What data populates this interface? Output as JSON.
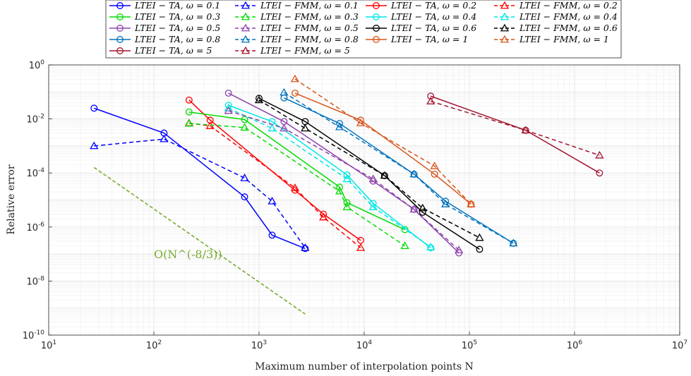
{
  "chart_data": {
    "type": "line",
    "title": "",
    "xlabel": "Maximum number of interpolation points N",
    "ylabel": "Relative error",
    "xscale": "log",
    "yscale": "log",
    "xlim": [
      10,
      10000000
    ],
    "ylim": [
      1e-10,
      1
    ],
    "x_ticks": [
      {
        "base": "10",
        "exp": "1"
      },
      {
        "base": "10",
        "exp": "2"
      },
      {
        "base": "10",
        "exp": "3"
      },
      {
        "base": "10",
        "exp": "4"
      },
      {
        "base": "10",
        "exp": "5"
      },
      {
        "base": "10",
        "exp": "6"
      },
      {
        "base": "10",
        "exp": "7"
      }
    ],
    "y_ticks": [
      {
        "base": "10",
        "exp": "0"
      },
      {
        "base": "10",
        "exp": "-2"
      },
      {
        "base": "10",
        "exp": "-4"
      },
      {
        "base": "10",
        "exp": "-6"
      },
      {
        "base": "10",
        "exp": "-8"
      },
      {
        "base": "10",
        "exp": "-10"
      }
    ],
    "grid": "major and minor",
    "legend_position": "top",
    "series": [
      {
        "name": "LTEI − TA, ω = 0.1",
        "color": "#0000ff",
        "marker": "circle",
        "dash": "solid",
        "x": [
          27,
          125,
          729,
          1331,
          2744
        ],
        "y": [
          0.025,
          0.003,
          1.3e-05,
          5e-07,
          1.6e-07
        ]
      },
      {
        "name": "LTEI − FMM, ω = 0.1",
        "color": "#0000ff",
        "marker": "triangle",
        "dash": "dashed",
        "x": [
          27,
          125,
          729,
          1331,
          2744
        ],
        "y": [
          0.001,
          0.0018,
          6.5e-05,
          9e-06,
          1.7e-07
        ]
      },
      {
        "name": "LTEI − TA, ω = 0.2",
        "color": "#ff0000",
        "marker": "circle",
        "dash": "solid",
        "x": [
          216,
          343,
          2197,
          4096,
          9261
        ],
        "y": [
          0.05,
          0.009,
          2.3e-05,
          3e-06,
          3.2e-07
        ]
      },
      {
        "name": "LTEI − FMM, ω = 0.2",
        "color": "#ff0000",
        "marker": "triangle",
        "dash": "dashed",
        "x": [
          216,
          343,
          2197,
          4096,
          9261
        ],
        "y": [
          0.007,
          0.0055,
          2.8e-05,
          2.3e-06,
          1.7e-07
        ]
      },
      {
        "name": "LTEI − TA, ω = 0.3",
        "color": "#00dd00",
        "marker": "circle",
        "dash": "solid",
        "x": [
          216,
          729,
          5832,
          6859,
          24389
        ],
        "y": [
          0.018,
          0.0095,
          3e-05,
          8e-06,
          8e-07
        ]
      },
      {
        "name": "LTEI − FMM, ω = 0.3",
        "color": "#00dd00",
        "marker": "triangle",
        "dash": "dashed",
        "x": [
          216,
          729,
          5832,
          6859,
          24389
        ],
        "y": [
          0.0068,
          0.0048,
          2.1e-05,
          5.5e-06,
          2e-07
        ]
      },
      {
        "name": "LTEI − TA, ω = 0.4",
        "color": "#00e6e6",
        "marker": "circle",
        "dash": "solid",
        "x": [
          512,
          1331,
          6859,
          12167,
          42875
        ],
        "y": [
          0.032,
          0.008,
          8.5e-05,
          7.5e-06,
          1.7e-07
        ]
      },
      {
        "name": "LTEI − FMM, ω = 0.4",
        "color": "#00e6e6",
        "marker": "triangle",
        "dash": "dashed",
        "x": [
          512,
          1331,
          6859,
          12167,
          42875
        ],
        "y": [
          0.025,
          0.0045,
          6e-05,
          5.5e-06,
          1.8e-07
        ]
      },
      {
        "name": "LTEI − TA, ω = 0.5",
        "color": "#8e44ad",
        "marker": "circle",
        "dash": "solid",
        "x": [
          512,
          1728,
          12167,
          29791,
          79507
        ],
        "y": [
          0.09,
          0.008,
          5e-05,
          4.5e-06,
          1.1e-07
        ]
      },
      {
        "name": "LTEI − FMM, ω = 0.5",
        "color": "#8e44ad",
        "marker": "triangle",
        "dash": "dashed",
        "x": [
          512,
          1728,
          12167,
          29791,
          79507
        ],
        "y": [
          0.02,
          0.0045,
          6e-05,
          4.5e-06,
          1.4e-07
        ]
      },
      {
        "name": "LTEI − TA, ω = 0.6",
        "color": "#000000",
        "marker": "circle",
        "dash": "solid",
        "x": [
          1000,
          2744,
          15625,
          35937,
          125000
        ],
        "y": [
          0.058,
          0.008,
          8e-05,
          3.5e-06,
          1.5e-07
        ]
      },
      {
        "name": "LTEI − FMM, ω = 0.6",
        "color": "#000000",
        "marker": "triangle",
        "dash": "dashed",
        "x": [
          1000,
          2744,
          15625,
          35937,
          125000
        ],
        "y": [
          0.05,
          0.0045,
          8e-05,
          5e-06,
          4e-07
        ]
      },
      {
        "name": "LTEI − TA, ω = 0.8",
        "color": "#0072bd",
        "marker": "circle",
        "dash": "solid",
        "x": [
          1728,
          5832,
          29791,
          59319,
          262144
        ],
        "y": [
          0.06,
          0.0068,
          9e-05,
          9e-06,
          2.5e-07
        ]
      },
      {
        "name": "LTEI − FMM, ω = 0.8",
        "color": "#0072bd",
        "marker": "triangle",
        "dash": "dashed",
        "x": [
          1728,
          5832,
          29791,
          59319,
          262144
        ],
        "y": [
          0.095,
          0.005,
          9e-05,
          7e-06,
          2.5e-07
        ]
      },
      {
        "name": "LTEI − TA, ω = 1",
        "color": "#d95319",
        "marker": "circle",
        "dash": "solid",
        "x": [
          2197,
          9261,
          46656,
          103823
        ],
        "y": [
          0.09,
          0.009,
          9e-05,
          7e-06
        ]
      },
      {
        "name": "LTEI − FMM, ω = 1",
        "color": "#d95319",
        "marker": "triangle",
        "dash": "dashed",
        "x": [
          2197,
          9261,
          46656,
          103823
        ],
        "y": [
          0.3,
          0.007,
          0.00018,
          7e-06
        ]
      },
      {
        "name": "LTEI − TA, ω = 5",
        "color": "#a2142f",
        "marker": "circle",
        "dash": "solid",
        "x": [
          42875,
          343000,
          1728000
        ],
        "y": [
          0.07,
          0.0038,
          0.0001
        ]
      },
      {
        "name": "LTEI − FMM, ω = 5",
        "color": "#a2142f",
        "marker": "triangle",
        "dash": "dashed",
        "x": [
          42875,
          343000,
          1728000
        ],
        "y": [
          0.045,
          0.0038,
          0.00045
        ]
      }
    ],
    "reference_line": {
      "label": "O(N^(-8/3))",
      "color": "#77ac30",
      "x": [
        27,
        2744
      ],
      "y": [
        0.00016,
        6e-10
      ]
    }
  }
}
